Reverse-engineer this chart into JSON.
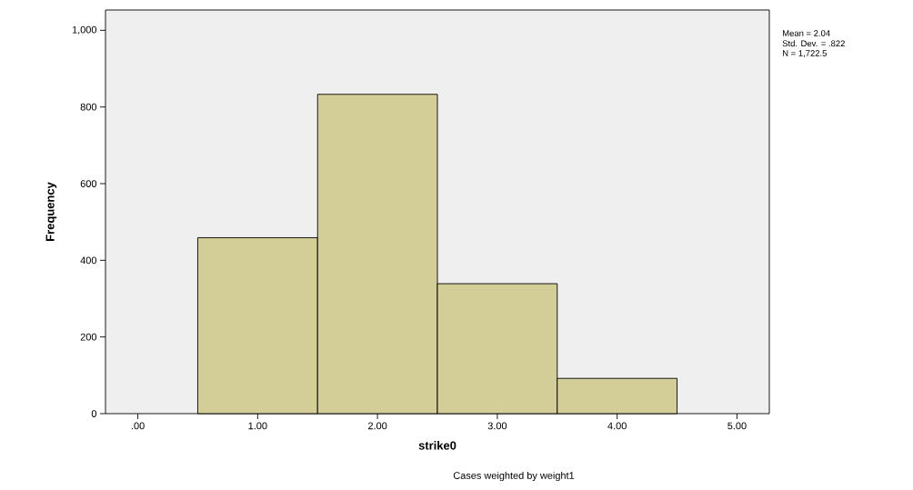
{
  "chart_data": {
    "type": "histogram",
    "xlabel": "strike0",
    "ylabel": "Frequency",
    "bins": [
      0.5,
      1.5,
      2.5,
      3.5,
      4.5
    ],
    "values": [
      459,
      833,
      339,
      92
    ],
    "color": "#d3ce97",
    "xlim": [
      -0.27,
      5.27
    ],
    "xticks": [
      {
        "value": 0,
        "label": ".00"
      },
      {
        "value": 1,
        "label": "1.00"
      },
      {
        "value": 2,
        "label": "2.00"
      },
      {
        "value": 3,
        "label": "3.00"
      },
      {
        "value": 4,
        "label": "4.00"
      },
      {
        "value": 5,
        "label": "5.00"
      }
    ],
    "ylim": [
      0,
      1053
    ],
    "yticks": [
      0,
      200,
      400,
      600,
      800,
      {
        "value": 1000,
        "label": "1,000"
      }
    ],
    "grid": false,
    "annotations": [
      "Mean = 2.04",
      "Std. Dev. = .822",
      "N = 1,722.5",
      "Cases weighted by weight1"
    ]
  }
}
